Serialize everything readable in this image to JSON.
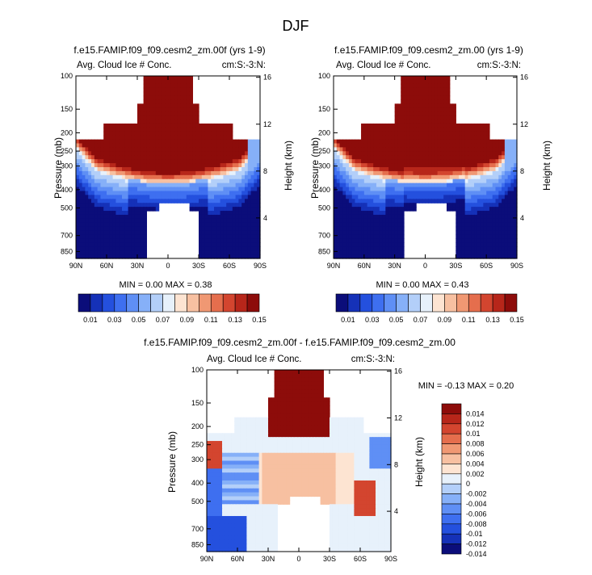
{
  "page": {
    "main_title": "DJF"
  },
  "colors": {
    "scale": [
      "#0b0d7a",
      "#1531b8",
      "#2450de",
      "#3e6ff0",
      "#5f8ff5",
      "#86b0f8",
      "#b3cff9",
      "#e7f1fb",
      "#fde4d2",
      "#f7c0a1",
      "#f09873",
      "#e56e4d",
      "#d3452f",
      "#b7261a",
      "#8d0c0a"
    ],
    "diff_scale": [
      "#0b0d7a",
      "#1531b8",
      "#2450de",
      "#3e6ff0",
      "#5f8ff5",
      "#86b0f8",
      "#b3cff9",
      "#e7f1fb",
      "#fde4d2",
      "#f7c0a1",
      "#f09873",
      "#e56e4d",
      "#d3452f",
      "#b7261a",
      "#8d0c0a"
    ]
  },
  "chart_data": [
    {
      "id": "panel1",
      "type": "heatmap",
      "title": "f.e15.FAMIP.f09_f09.cesm2_zm.00f (yrs 1-9)",
      "left_subtitle": "Avg. Cloud Ice # Conc.",
      "right_subtitle": "cm:S:-3:N:",
      "ylabel": "Pressure (mb)",
      "y2label": "Height (km)",
      "xticks": [
        "90N",
        "60N",
        "30N",
        "0",
        "30S",
        "60S",
        "90S"
      ],
      "yticks": [
        "100",
        "150",
        "200",
        "250",
        "300",
        "400",
        "500",
        "700",
        "850"
      ],
      "y2ticks": [
        "16",
        "12",
        "8",
        "4"
      ],
      "stats": "MIN =  0.00   MAX =  0.38",
      "min": 0.0,
      "max": 0.38
    },
    {
      "id": "panel2",
      "type": "heatmap",
      "title": "f.e15.FAMIP.f09_f09.cesm2_zm.00 (yrs 1-9)",
      "left_subtitle": "Avg. Cloud Ice # Conc.",
      "right_subtitle": "cm:S:-3:N:",
      "ylabel": "Pressure (mb)",
      "y2label": "Height (km)",
      "xticks": [
        "90N",
        "60N",
        "30N",
        "0",
        "30S",
        "60S",
        "90S"
      ],
      "yticks": [
        "100",
        "150",
        "200",
        "250",
        "300",
        "400",
        "500",
        "700",
        "850"
      ],
      "y2ticks": [
        "16",
        "12",
        "8",
        "4"
      ],
      "stats": "MIN =  0.00   MAX =  0.43",
      "min": 0.0,
      "max": 0.43
    },
    {
      "id": "panel3",
      "type": "heatmap",
      "title": "f.e15.FAMIP.f09_f09.cesm2_zm.00f - f.e15.FAMIP.f09_f09.cesm2_zm.00",
      "left_subtitle": "Avg. Cloud Ice # Conc.",
      "right_subtitle": "cm:S:-3:N:",
      "ylabel": "Pressure (mb)",
      "y2label": "Height (km)",
      "xticks": [
        "90N",
        "60N",
        "30N",
        "0",
        "30S",
        "60S",
        "90S"
      ],
      "yticks": [
        "100",
        "150",
        "200",
        "250",
        "300",
        "400",
        "500",
        "700",
        "850"
      ],
      "y2ticks": [
        "16",
        "12",
        "8",
        "4"
      ],
      "stats": "MIN = -0.13   MAX =  0.20",
      "min": -0.13,
      "max": 0.2
    }
  ],
  "colorbar_main": {
    "labels": [
      "0.01",
      "0.03",
      "0.05",
      "0.07",
      "0.09",
      "0.11",
      "0.13",
      "0.15"
    ]
  },
  "colorbar_diff": {
    "labels": [
      "0.014",
      "0.012",
      "0.01",
      "0.008",
      "0.006",
      "0.004",
      "0.002",
      "0",
      "-0.002",
      "-0.004",
      "-0.006",
      "-0.008",
      "-0.01",
      "-0.012",
      "-0.014"
    ]
  }
}
